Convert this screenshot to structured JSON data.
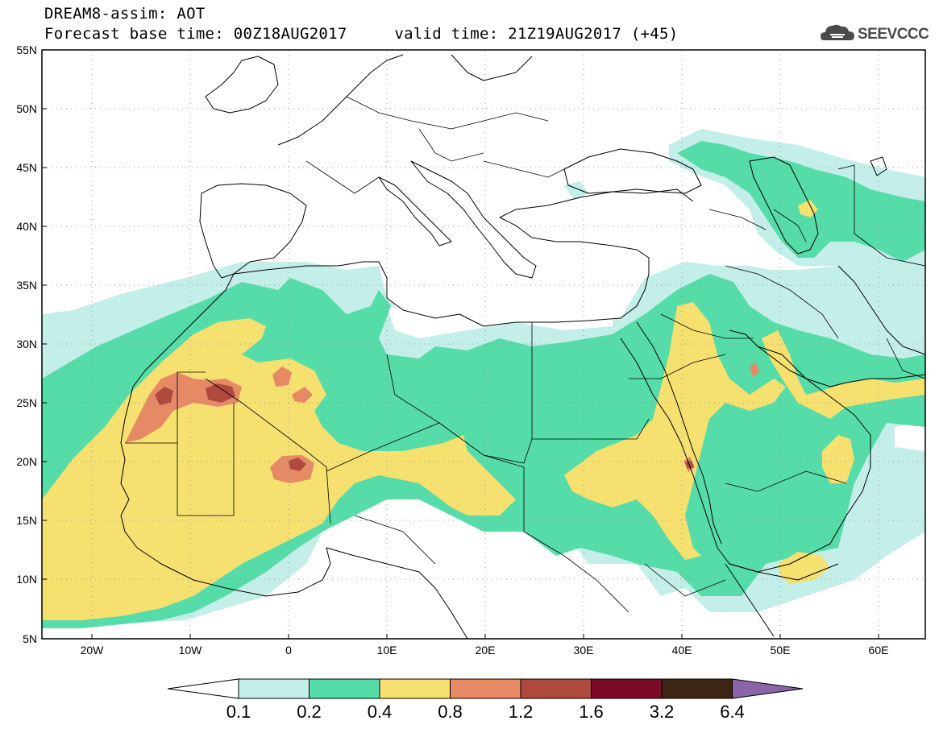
{
  "header": {
    "title_line1": "DREAM8-assim: AOT",
    "title_line2": "Forecast base time: 00Z18AUG2017     valid time: 21Z19AUG2017 (+45)",
    "logo_text": "SEEVCCC"
  },
  "map": {
    "lat_labels": [
      "55N",
      "50N",
      "45N",
      "40N",
      "35N",
      "30N",
      "25N",
      "20N",
      "15N",
      "10N",
      "5N"
    ],
    "lon_labels": [
      "20W",
      "10W",
      "0",
      "10E",
      "20E",
      "30E",
      "40E",
      "50E",
      "60E"
    ]
  },
  "colorbar": {
    "ticks": [
      "0.1",
      "0.2",
      "0.4",
      "0.8",
      "1.2",
      "1.6",
      "3.2",
      "6.4"
    ],
    "colors": [
      "#ffffff",
      "#c4eee8",
      "#55dca8",
      "#f5e070",
      "#e58a65",
      "#b04a3e",
      "#7a0a28",
      "#3e2412",
      "#8a66a8"
    ]
  }
}
